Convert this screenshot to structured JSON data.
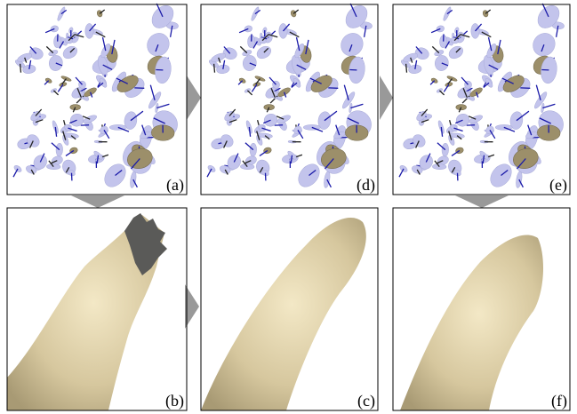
{
  "panels": [
    {
      "label": "(a)"
    },
    {
      "label": "(d)"
    },
    {
      "label": "(e)"
    },
    {
      "label": "(b)"
    },
    {
      "label": "(c)"
    },
    {
      "label": "(f)"
    }
  ]
}
